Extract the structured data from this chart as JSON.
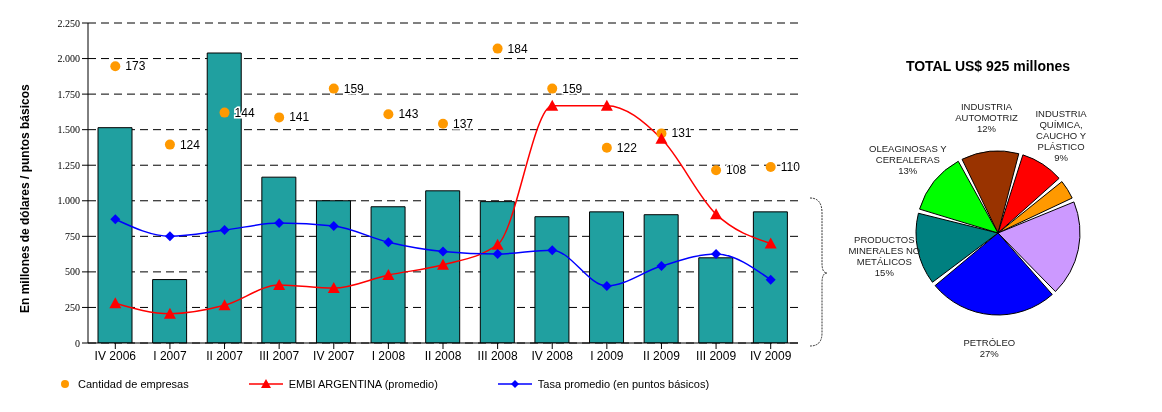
{
  "chart_data": [
    {
      "type": "bar",
      "categories": [
        "IV 2006",
        "I 2007",
        "II 2007",
        "III 2007",
        "IV 2007",
        "I 2008",
        "II 2008",
        "III 2008",
        "IV 2008",
        "I 2009",
        "II 2009",
        "III 2009",
        "IV 2009"
      ],
      "ylabel": "En millones de dólares / puntos básicos",
      "ylim": [
        0,
        2250
      ],
      "yticks": [
        0,
        250,
        500,
        750,
        {
          "value": 1000,
          "label": "1.000"
        },
        {
          "value": 1250,
          "label": "1.250"
        },
        {
          "value": 1500,
          "label": "1.500"
        },
        {
          "value": 1750,
          "label": "1.750"
        },
        {
          "value": 2000,
          "label": "2.000"
        },
        {
          "value": 2250,
          "label": "2.250"
        }
      ],
      "grid": "y",
      "legend": "bottom",
      "y2lim": [
        0,
        200
      ],
      "series": [
        {
          "type": "bar",
          "color": "#20a0a0",
          "values": [
            1514,
            446,
            2039,
            1166,
            1000,
            958,
            1070,
            994,
            888,
            922,
            902,
            599,
            922
          ]
        },
        {
          "type": "scatter",
          "name": "Cantidad de empresas",
          "color": "#ff9900",
          "marker": "circle",
          "axis": "y2",
          "data_labels": true,
          "values": [
            173,
            124,
            144,
            141,
            159,
            143,
            137,
            184,
            159,
            122,
            131,
            108,
            110
          ]
        },
        {
          "type": "line",
          "name": "EMBI ARGENTINA (promedio)",
          "color": "#ff0000",
          "marker": "triangle",
          "values": [
            280,
            206,
            265,
            408,
            386,
            478,
            550,
            691,
            1669,
            1669,
            1436,
            906,
            700
          ]
        },
        {
          "type": "line",
          "name": "Tasa promedio (en puntos básicos)",
          "color": "#0000ff",
          "marker": "diamond",
          "values": [
            870,
            751,
            794,
            843,
            823,
            709,
            644,
            626,
            653,
            401,
            541,
            626,
            444
          ]
        }
      ]
    },
    {
      "type": "pie",
      "title": "TOTAL US$ 925 millones",
      "categories": [
        "INDUSTRIA AUTOMOTRIZ",
        "INDUSTRIA QUÍMICA, CAUCHO Y PLÁSTICO",
        null,
        null,
        "PETRÓLEO",
        "PRODUCTOS MINERALES NO METÁLICOS",
        "OLEAGINOSAS Y CEREALERAS"
      ],
      "values": [
        12,
        9,
        4,
        20,
        27,
        15,
        13
      ],
      "value_labels": [
        "12%",
        "9%",
        null,
        null,
        "27%",
        "15%",
        "13%"
      ],
      "colors": [
        "#993300",
        "#ff0000",
        "#ff9900",
        "#cc99ff",
        "#0000ff",
        "#008080",
        "#00ff00"
      ]
    }
  ]
}
